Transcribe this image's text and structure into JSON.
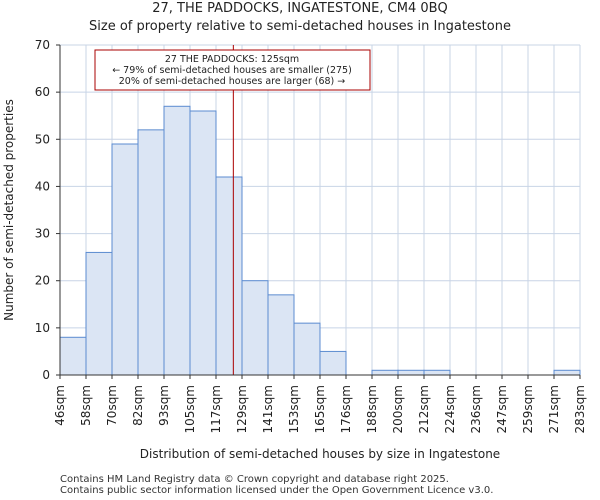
{
  "chart_data": {
    "type": "bar",
    "title": "27, THE PADDOCKS, INGATESTONE, CM4 0BQ",
    "subtitle": "Size of property relative to semi-detached houses in Ingatestone",
    "xlabel": "Distribution of semi-detached houses by size in Ingatestone",
    "ylabel": "Number of semi-detached properties",
    "ylim": [
      0,
      70
    ],
    "yticks": [
      0,
      10,
      20,
      30,
      40,
      50,
      60,
      70
    ],
    "grid": true,
    "bin_edges": [
      46,
      58,
      70,
      82,
      93,
      105,
      117,
      129,
      141,
      153,
      165,
      176,
      188,
      200,
      212,
      224,
      236,
      247,
      259,
      271,
      283
    ],
    "tick_labels": [
      "46sqm",
      "58sqm",
      "70sqm",
      "82sqm",
      "93sqm",
      "105sqm",
      "117sqm",
      "129sqm",
      "141sqm",
      "153sqm",
      "165sqm",
      "176sqm",
      "188sqm",
      "200sqm",
      "212sqm",
      "224sqm",
      "236sqm",
      "247sqm",
      "259sqm",
      "271sqm",
      "283sqm"
    ],
    "values": [
      8,
      26,
      49,
      52,
      57,
      56,
      42,
      20,
      17,
      11,
      5,
      0,
      1,
      1,
      1,
      0,
      0,
      0,
      0,
      1
    ],
    "marker": {
      "value": 125,
      "color": "#aa0000"
    },
    "annotation": {
      "lines": [
        "27 THE PADDOCKS: 125sqm",
        "← 79% of semi-detached houses are smaller (275)",
        "20% of semi-detached houses are larger (68) →"
      ]
    },
    "colors": {
      "bar_fill": "#dbe5f4",
      "bar_stroke": "#5b8bd0",
      "grid": "#c8d4e6"
    }
  },
  "footer": {
    "line1": "Contains HM Land Registry data © Crown copyright and database right 2025.",
    "line2": "Contains public sector information licensed under the Open Government Licence v3.0."
  }
}
